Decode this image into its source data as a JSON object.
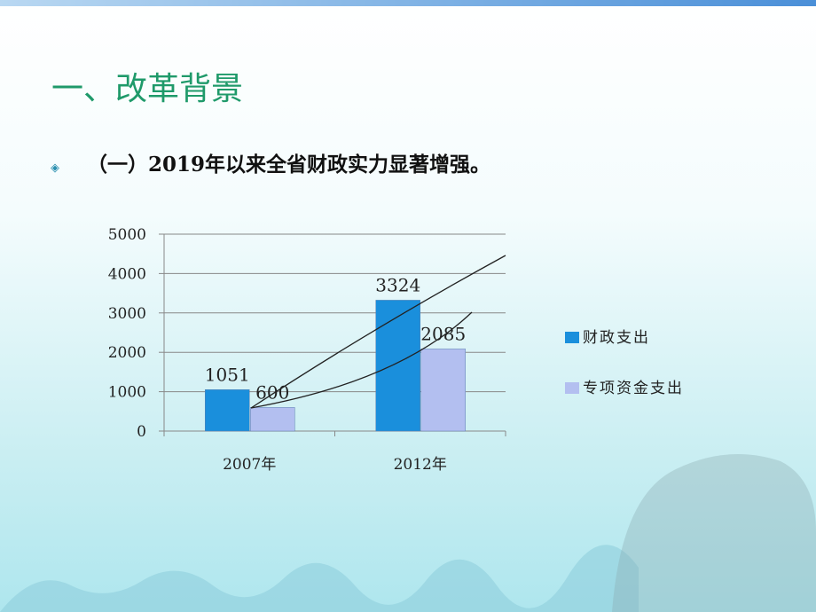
{
  "header": {
    "title": "一、改革背景",
    "bullet": "（一）2019年以来全省财政实力显著增强。"
  },
  "chart_data": {
    "type": "bar",
    "categories": [
      "2007年",
      "2012年"
    ],
    "series": [
      {
        "name": "财政支出",
        "color": "#1a8fdc",
        "values": [
          1051,
          3324
        ]
      },
      {
        "name": "专项资金支出",
        "color": "#b3bff0",
        "values": [
          600,
          2085
        ]
      }
    ],
    "ylim": [
      0,
      5000
    ],
    "yticks": [
      0,
      1000,
      2000,
      3000,
      4000,
      5000
    ],
    "grid": true,
    "legend": "right"
  }
}
